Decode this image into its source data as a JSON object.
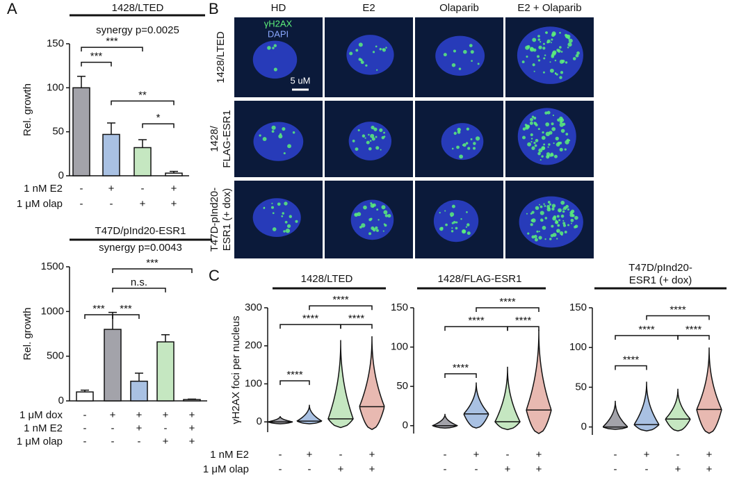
{
  "panel_labels": [
    "A",
    "B",
    "C"
  ],
  "images": {
    "columns": [
      "HD",
      "E2",
      "Olaparib",
      "E2 + Olaparib"
    ],
    "rows": [
      [
        "1428/LTED"
      ],
      [
        "1428/",
        "FLAG-ESR1"
      ],
      [
        "T47D-pInd20-",
        "ESR1 (+ dox)"
      ]
    ],
    "legend": [
      "γH2AX",
      "DAPI"
    ],
    "scale_bar": "5 uM"
  },
  "chart_data": [
    {
      "type": "bar",
      "title": [
        "1428/LTED"
      ],
      "subtitle": "synergy p=0.0025",
      "ylabel": "Rel. growth",
      "ylim": [
        0,
        150
      ],
      "yticks": [
        0,
        50,
        100,
        150
      ],
      "values": [
        100,
        47,
        32,
        3
      ],
      "errors": [
        13,
        13,
        9,
        2
      ],
      "colors": [
        "#a3a3aa",
        "#a9c1e3",
        "#c5e7c1",
        "#ffffff"
      ],
      "conditions": [
        {
          "label": "1 nM E2",
          "signs": [
            "-",
            "+",
            "-",
            "+"
          ]
        },
        {
          "label": "1 μM olap",
          "signs": [
            "-",
            "-",
            "+",
            "+"
          ]
        }
      ],
      "brackets": [
        {
          "from": 0,
          "to": 2,
          "y": 146,
          "label": "***"
        },
        {
          "from": 0,
          "to": 1,
          "y": 129,
          "label": "***"
        },
        {
          "from": 1,
          "to": 3,
          "y": 85,
          "label": "**"
        },
        {
          "from": 2,
          "to": 3,
          "y": 59,
          "label": "*"
        }
      ]
    },
    {
      "type": "bar",
      "title": [
        "T47D/pInd20-ESR1"
      ],
      "subtitle": "synergy p=0.0043",
      "ylabel": "Rel. growth",
      "ylim": [
        0,
        1500
      ],
      "yticks": [
        0,
        500,
        1000,
        1500
      ],
      "values": [
        100,
        800,
        220,
        660,
        15
      ],
      "errors": [
        20,
        190,
        90,
        80,
        5
      ],
      "colors": [
        "#ffffff",
        "#a3a3aa",
        "#a9c1e3",
        "#c5e7c1",
        "#ffffff"
      ],
      "conditions": [
        {
          "label": "1 μM dox",
          "signs": [
            "-",
            "+",
            "+",
            "+",
            "+"
          ]
        },
        {
          "label": "1 nM E2",
          "signs": [
            "-",
            "-",
            "+",
            "-",
            "+"
          ]
        },
        {
          "label": "1 μM olap",
          "signs": [
            "-",
            "-",
            "-",
            "+",
            "+"
          ]
        }
      ],
      "brackets": [
        {
          "from": 0,
          "to": 1,
          "y": 964,
          "label": "***"
        },
        {
          "from": 1,
          "to": 2,
          "y": 964,
          "label": "***"
        },
        {
          "from": 1,
          "to": 3,
          "y": 1260,
          "label": "n.s."
        },
        {
          "from": 1,
          "to": 4,
          "y": 1477,
          "label": "***"
        }
      ]
    },
    {
      "type": "violin",
      "title": [
        "1428/LTED"
      ],
      "ylabel": "γH2AX foci per nucleus",
      "ylim": [
        -27,
        300
      ],
      "yticks": [
        0,
        100,
        200,
        300
      ],
      "medians": [
        0,
        2,
        8,
        40
      ],
      "min": [
        -5,
        -5,
        -15,
        -20
      ],
      "max": [
        15,
        45,
        215,
        225
      ],
      "colors": [
        "#a3a3aa",
        "#a9c1e3",
        "#c5e7c1",
        "#e8b9b1"
      ],
      "conditions": [
        {
          "label": "1 nM E2",
          "signs": [
            "-",
            "+",
            "-",
            "+"
          ]
        },
        {
          "label": "1 μM olap",
          "signs": [
            "-",
            "-",
            "+",
            "+"
          ]
        }
      ],
      "brackets": [
        {
          "from": 0,
          "to": 1,
          "y": 108,
          "label": "****"
        },
        {
          "from": 0,
          "to": 2,
          "y": 256,
          "label": "****"
        },
        {
          "from": 2,
          "to": 3,
          "y": 256,
          "label": "****"
        },
        {
          "from": 1,
          "to": 3,
          "y": 305,
          "label": "****"
        }
      ]
    },
    {
      "type": "violin",
      "title": [
        "1428/FLAG-ESR1"
      ],
      "ylim": [
        -10,
        150
      ],
      "yticks": [
        0,
        50,
        100,
        150
      ],
      "medians": [
        0,
        15,
        5,
        20
      ],
      "min": [
        -3,
        -3,
        -5,
        -10
      ],
      "max": [
        15,
        55,
        75,
        122
      ],
      "colors": [
        "#a3a3aa",
        "#a9c1e3",
        "#c5e7c1",
        "#e8b9b1"
      ],
      "conditions": [
        {
          "signs": [
            "-",
            "+",
            "-",
            "+"
          ]
        },
        {
          "signs": [
            "-",
            "-",
            "+",
            "+"
          ]
        }
      ],
      "brackets": [
        {
          "from": 0,
          "to": 1,
          "y": 66,
          "label": "****"
        },
        {
          "from": 0,
          "to": 2,
          "y": 126,
          "label": "****"
        },
        {
          "from": 2,
          "to": 3,
          "y": 126,
          "label": "****"
        },
        {
          "from": 1,
          "to": 3,
          "y": 150,
          "label": "****"
        }
      ]
    },
    {
      "type": "violin",
      "title": [
        "T47D/pInd20-",
        "ESR1 (+ dox)"
      ],
      "ylim": [
        -10,
        150
      ],
      "yticks": [
        0,
        50,
        100,
        150
      ],
      "medians": [
        0,
        3,
        10,
        22
      ],
      "min": [
        -3,
        -5,
        -5,
        -8
      ],
      "max": [
        33,
        57,
        48,
        100
      ],
      "colors": [
        "#a3a3aa",
        "#a9c1e3",
        "#c5e7c1",
        "#e8b9b1"
      ],
      "conditions": [
        {
          "signs": [
            "-",
            "+",
            "-",
            "+"
          ]
        },
        {
          "signs": [
            "-",
            "-",
            "+",
            "+"
          ]
        }
      ],
      "brackets": [
        {
          "from": 0,
          "to": 1,
          "y": 77,
          "label": "****"
        },
        {
          "from": 0,
          "to": 2,
          "y": 115,
          "label": "****"
        },
        {
          "from": 2,
          "to": 3,
          "y": 115,
          "label": "****"
        },
        {
          "from": 1,
          "to": 3,
          "y": 140,
          "label": "****"
        }
      ]
    }
  ]
}
